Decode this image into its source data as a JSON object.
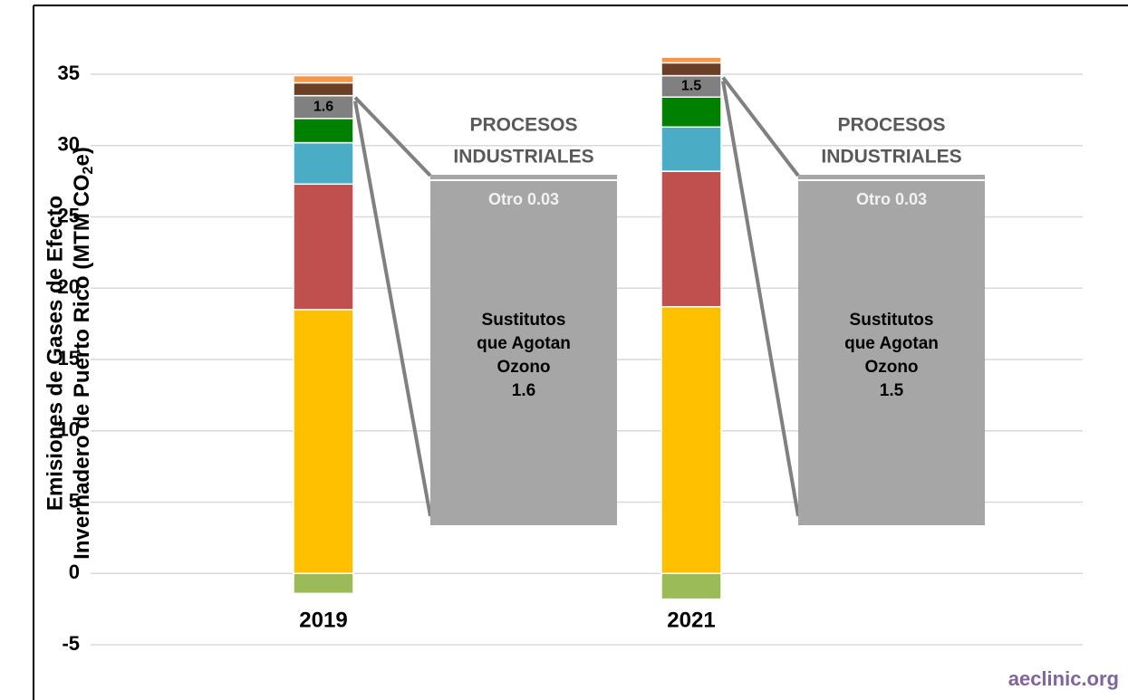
{
  "chart_data": {
    "type": "stacked_bar",
    "y_label": {
      "line1": "Emisiones de Gases de Efecto",
      "line2": "Invernadero de Puerto Rico (MTM CO",
      "sub": "2",
      "end": "e)"
    },
    "categories": [
      "2019",
      "2021"
    ],
    "series": [
      {
        "color": "#9bbb59",
        "values": [
          -1.4,
          -1.8
        ]
      },
      {
        "color": "#ffc000",
        "values": [
          18.5,
          18.7
        ]
      },
      {
        "color": "#c0504d",
        "values": [
          8.8,
          9.5
        ]
      },
      {
        "color": "#4bacc6",
        "values": [
          2.9,
          3.1
        ]
      },
      {
        "color": "#008000",
        "values": [
          1.7,
          2.1
        ]
      },
      {
        "color": "#808080",
        "values": [
          1.6,
          1.5
        ],
        "show_labels": true
      },
      {
        "color": "#6b3e26",
        "values": [
          0.9,
          0.9
        ]
      },
      {
        "color": "#f79646",
        "values": [
          0.5,
          0.4
        ]
      }
    ],
    "annotations": [
      {
        "heading": [
          "PROCESOS",
          "INDUSTRIALES"
        ],
        "other": "Otro 0.03",
        "main": [
          "Sustitutos",
          "que Agotan",
          "Ozono",
          "1.6"
        ]
      },
      {
        "heading": [
          "PROCESOS",
          "INDUSTRIALES"
        ],
        "other": "Otro 0.03",
        "main": [
          "Sustitutos",
          "que Agotan",
          "Ozono",
          "1.5"
        ]
      }
    ],
    "ylim": [
      -5,
      35
    ],
    "yticks": [
      -5,
      0,
      5,
      10,
      15,
      20,
      25,
      30,
      35
    ],
    "grid": true,
    "source": "aeclinic.org"
  }
}
